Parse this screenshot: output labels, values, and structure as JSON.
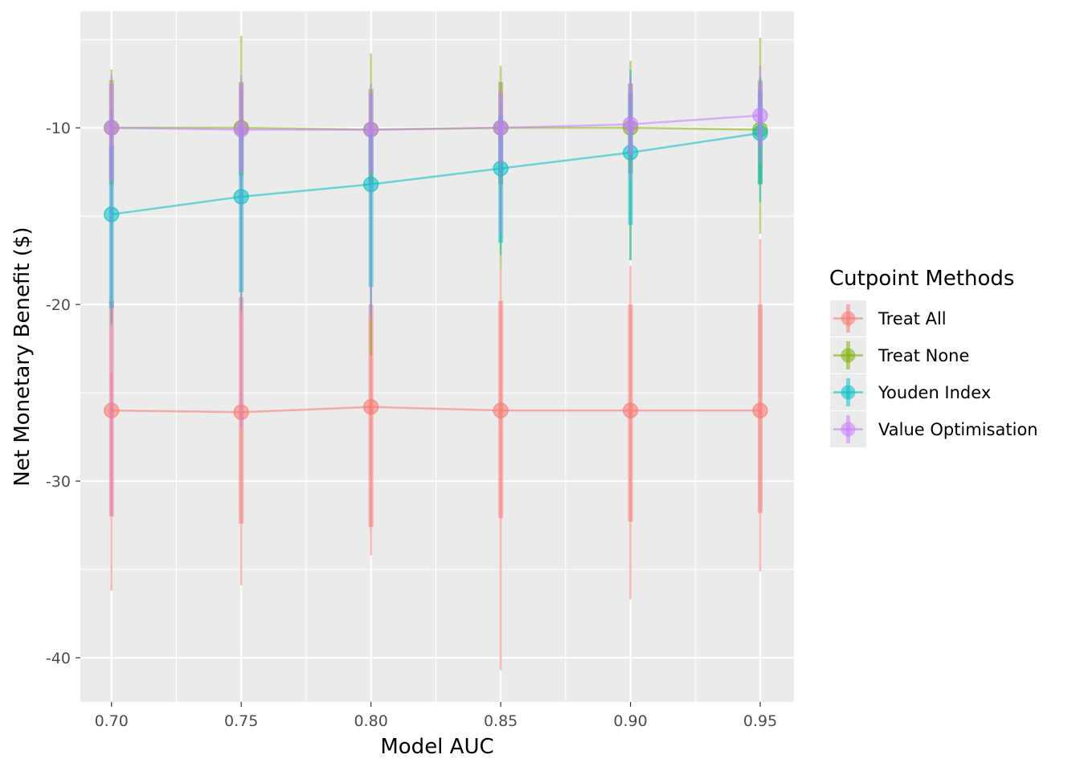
{
  "chart_data": {
    "type": "line",
    "xlabel": "Model AUC",
    "ylabel": "Net Monetary Benefit ($)",
    "xlim": [
      0.688,
      0.963
    ],
    "ylim": [
      -42.5,
      -3.4
    ],
    "x": [
      0.7,
      0.75,
      0.8,
      0.85,
      0.9,
      0.95
    ],
    "x_tick_labels": [
      "0.70",
      "0.75",
      "0.80",
      "0.85",
      "0.90",
      "0.95"
    ],
    "y_ticks": [
      -10,
      -20,
      -30,
      -40
    ],
    "y_tick_labels": [
      "-10",
      "-20",
      "-30",
      "-40"
    ],
    "grid": true,
    "legend": {
      "title": "Cutpoint Methods",
      "placement": "right"
    },
    "series": [
      {
        "name": "Treat All",
        "color": "#F8766D",
        "values": [
          -26.0,
          -26.1,
          -25.8,
          -26.0,
          -26.0,
          -26.0
        ],
        "interval_outer": [
          [
            -36.2,
            -23.8
          ],
          [
            -35.9,
            -20.5
          ],
          [
            -34.2,
            -20.8
          ],
          [
            -40.7,
            -18.0
          ],
          [
            -36.7,
            -17.8
          ],
          [
            -35.1,
            -16.3
          ]
        ],
        "interval_inner": [
          [
            -32.0,
            -19.8
          ],
          [
            -32.4,
            -19.6
          ],
          [
            -32.6,
            -20.0
          ],
          [
            -32.1,
            -19.8
          ],
          [
            -32.3,
            -20.0
          ],
          [
            -31.8,
            -20.0
          ]
        ]
      },
      {
        "name": "Treat None",
        "color": "#7CAE00",
        "values": [
          -10.0,
          -10.0,
          -10.1,
          -10.0,
          -10.0,
          -10.1
        ],
        "interval_outer": [
          [
            -21.0,
            -6.7
          ],
          [
            -20.5,
            -4.8
          ],
          [
            -22.9,
            -5.8
          ],
          [
            -18.0,
            -6.5
          ],
          [
            -17.5,
            -6.2
          ],
          [
            -16.0,
            -4.9
          ]
        ],
        "interval_inner": [
          [
            -13.2,
            -7.3
          ],
          [
            -12.7,
            -7.4
          ],
          [
            -13.2,
            -7.8
          ],
          [
            -13.2,
            -7.4
          ],
          [
            -12.6,
            -7.5
          ],
          [
            -13.2,
            -7.3
          ]
        ]
      },
      {
        "name": "Youden Index",
        "color": "#00BFC4",
        "values": [
          -14.9,
          -13.9,
          -13.2,
          -12.3,
          -11.4,
          -10.3
        ],
        "interval_outer": [
          [
            -21.2,
            -8.9
          ],
          [
            -20.3,
            -8.0
          ],
          [
            -20.7,
            -8.1
          ],
          [
            -17.2,
            -8.5
          ],
          [
            -17.5,
            -6.7
          ],
          [
            -14.2,
            -7.1
          ]
        ],
        "interval_inner": [
          [
            -20.2,
            -11.0
          ],
          [
            -19.3,
            -10.1
          ],
          [
            -19.0,
            -10.2
          ],
          [
            -16.5,
            -9.3
          ],
          [
            -15.5,
            -8.0
          ],
          [
            -13.2,
            -8.0
          ]
        ]
      },
      {
        "name": "Value Optimisation",
        "color": "#C77CFF",
        "values": [
          -10.0,
          -10.1,
          -10.1,
          -10.0,
          -9.8,
          -9.3
        ],
        "interval_outer": [
          [
            -32.0,
            -7.0
          ],
          [
            -27.0,
            -7.0
          ],
          [
            -21.0,
            -7.5
          ],
          [
            -16.0,
            -7.5
          ],
          [
            -13.0,
            -7.0
          ],
          [
            -12.0,
            -6.5
          ]
        ],
        "interval_inner": [
          [
            -13.0,
            -7.5
          ],
          [
            -12.5,
            -7.5
          ],
          [
            -12.5,
            -8.0
          ],
          [
            -12.0,
            -8.0
          ],
          [
            -11.5,
            -7.5
          ],
          [
            -11.0,
            -7.5
          ]
        ]
      }
    ]
  }
}
